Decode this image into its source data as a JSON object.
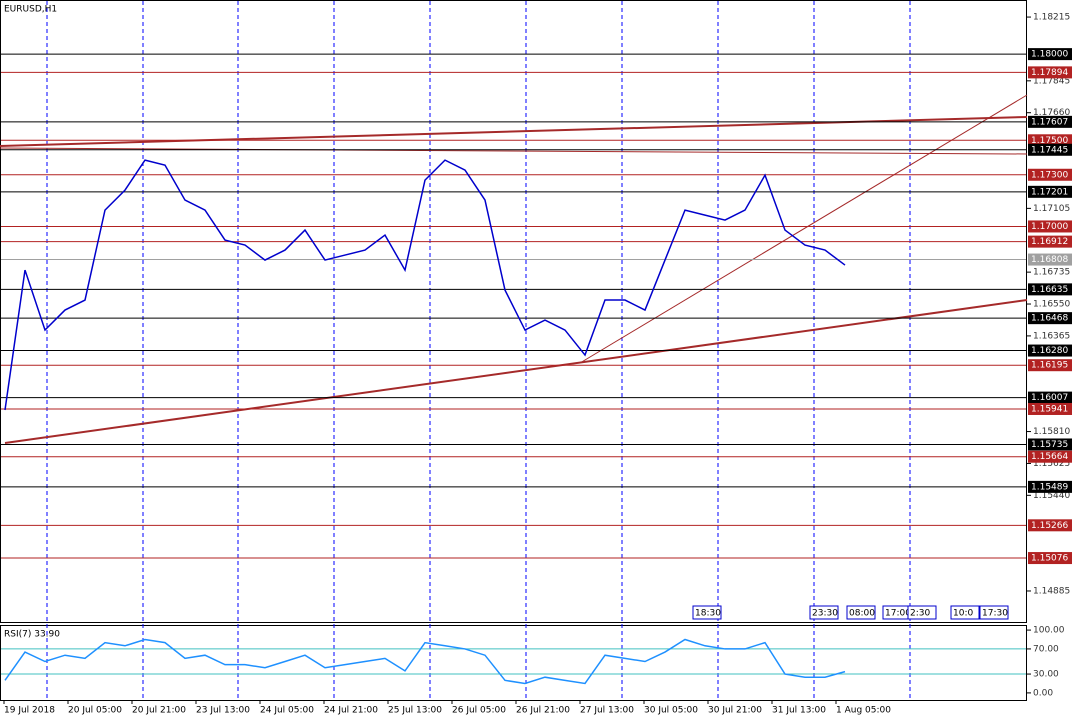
{
  "chart_data": [
    {
      "type": "line",
      "title": "EURUSD,H1",
      "values": [
        1.15935,
        1.16747,
        1.16399,
        1.16515,
        1.16573,
        1.17095,
        1.17211,
        1.17385,
        1.17356,
        1.17153,
        1.17095,
        1.16921,
        1.16892,
        1.16805,
        1.16863,
        1.16979,
        1.16805,
        1.16834,
        1.16863,
        1.1695,
        1.16747,
        1.17269,
        1.17385,
        1.17327,
        1.17153,
        1.16631,
        1.16399,
        1.16457,
        1.16399,
        1.16254,
        1.16573,
        1.16573,
        1.16515,
        1.16805,
        1.17095,
        1.17066,
        1.17037,
        1.17095,
        1.17298,
        1.16979,
        1.16892,
        1.16863,
        1.16776
      ],
      "color": "#0000cc",
      "ylim": [
        1.14705,
        1.18314
      ],
      "yticks": [
        1.18215,
        {
          "value": 1.17845,
          "label": "1.17845"
        },
        {
          "value": 1.1766,
          "label": "1.17660"
        },
        1.17105,
        1.16735,
        {
          "value": 1.1655,
          "label": "1.16550"
        },
        1.16365,
        {
          "value": 1.1581,
          "label": "1.15810"
        },
        1.15625,
        {
          "value": 1.1544,
          "label": "1.15440"
        },
        1.14885
      ],
      "levels": [
        {
          "value": 1.18,
          "label": "1.18000",
          "color": "#000000"
        },
        {
          "value": 1.17894,
          "label": "1.17894",
          "color": "#b22222"
        },
        {
          "value": 1.17607,
          "label": "1.17607",
          "color": "#000000"
        },
        {
          "value": 1.175,
          "label": "1.17500",
          "color": "#b22222"
        },
        {
          "value": 1.17445,
          "label": "1.17445",
          "color": "#000000"
        },
        {
          "value": 1.173,
          "label": "1.17300",
          "color": "#b22222"
        },
        {
          "value": 1.17201,
          "label": "1.17201",
          "color": "#000000"
        },
        {
          "value": 1.17,
          "label": "1.17000",
          "color": "#b22222"
        },
        {
          "value": 1.16912,
          "label": "1.16912",
          "color": "#b22222"
        },
        {
          "value": 1.16808,
          "label": "1.16808",
          "color": "#a0a0a0"
        },
        {
          "value": 1.16635,
          "label": "1.16635",
          "color": "#000000"
        },
        {
          "value": 1.16468,
          "label": "1.16468",
          "color": "#000000"
        },
        {
          "value": 1.1628,
          "label": "1.16280",
          "color": "#000000"
        },
        {
          "value": 1.16195,
          "label": "1.16195",
          "color": "#b22222"
        },
        {
          "value": 1.16007,
          "label": "1.16007",
          "color": "#000000"
        },
        {
          "value": 1.15941,
          "label": "1.15941",
          "color": "#b22222"
        },
        {
          "value": 1.15735,
          "label": "1.15735",
          "color": "#000000"
        },
        {
          "value": 1.15664,
          "label": "1.15664",
          "color": "#b22222"
        },
        {
          "value": 1.15489,
          "label": "1.15489",
          "color": "#000000"
        },
        {
          "value": 1.15266,
          "label": "1.15266",
          "color": "#b22222"
        },
        {
          "value": 1.15076,
          "label": "1.15076",
          "color": "#b22222"
        }
      ]
    },
    {
      "type": "line",
      "title": "RSI(7) 33.90",
      "values": [
        20,
        65,
        50,
        60,
        55,
        80,
        75,
        85,
        80,
        55,
        60,
        45,
        45,
        40,
        50,
        60,
        40,
        45,
        50,
        55,
        35,
        80,
        75,
        70,
        60,
        20,
        15,
        25,
        20,
        15,
        60,
        55,
        50,
        65,
        85,
        75,
        70,
        70,
        80,
        30,
        25,
        25,
        33.9
      ],
      "color": "#1e90ff",
      "ylim": [
        -11.3,
        106.5
      ],
      "yticks": [
        {
          "value": 100,
          "label": "100.00"
        },
        {
          "value": 70,
          "label": "70.00"
        },
        {
          "value": 30,
          "label": "30.00"
        },
        {
          "value": 0,
          "label": "0.00"
        }
      ]
    }
  ],
  "time_axis": [
    "19 Jul 2018",
    "20 Jul 05:00",
    "20 Jul 21:00",
    "23 Jul 13:00",
    "24 Jul 05:00",
    "24 Jul 21:00",
    "25 Jul 13:00",
    "26 Jul 05:00",
    "26 Jul 21:00",
    "27 Jul 13:00",
    "30 Jul 05:00",
    "30 Jul 21:00",
    "31 Jul 13:00",
    "1 Aug 05:00"
  ],
  "tags": [
    "18:30",
    "23:30",
    "08:00",
    "17:00",
    "2:30",
    "10:0",
    "17:30"
  ]
}
